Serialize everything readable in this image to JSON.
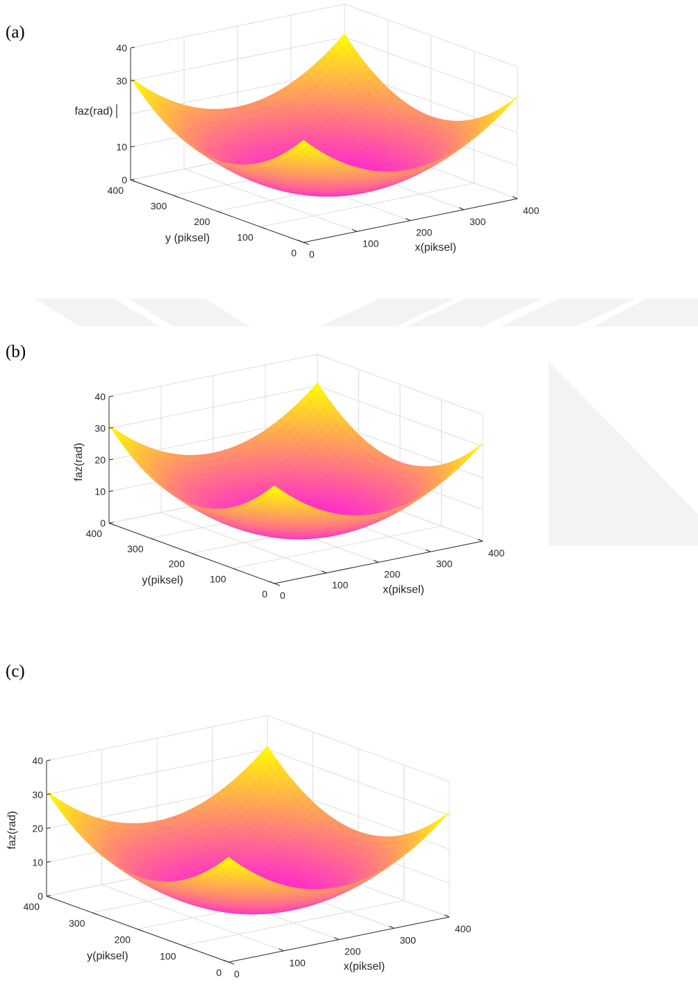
{
  "colors": {
    "surface_low": "#ff10e6",
    "surface_high": "#ffff00",
    "grid": "#dddddd",
    "axis": "#262626",
    "watermark": "#f3f3f3"
  },
  "chart_data": [
    {
      "panel_label": "(a)",
      "type": "surface",
      "xlabel": "x(piksel)",
      "ylabel": "y (piksel)",
      "zlabel": "faz(rad)",
      "zlabel_orientation": "horizontal",
      "xlim": [
        0,
        400
      ],
      "ylim": [
        0,
        400
      ],
      "zlim": [
        0,
        40
      ],
      "x_ticks": [
        "0",
        "100",
        "200",
        "300",
        "400"
      ],
      "y_ticks": [
        "0",
        "100",
        "200",
        "300",
        "400"
      ],
      "z_ticks": [
        "0",
        "10",
        "30",
        "40"
      ],
      "surface": {
        "center": [
          200,
          200
        ],
        "corner_values": {
          "x0_y0": 30,
          "x400_y0": 31,
          "x0_y400": 31,
          "x400_y400": 31
        },
        "min_value": 0,
        "colormap": "spring"
      },
      "grid": true
    },
    {
      "panel_label": "(b)",
      "type": "surface",
      "xlabel": "x(piksel)",
      "ylabel": "y(piksel)",
      "zlabel": "faz(rad)",
      "zlabel_orientation": "vertical",
      "xlim": [
        0,
        400
      ],
      "ylim": [
        0,
        400
      ],
      "zlim": [
        0,
        40
      ],
      "x_ticks": [
        "0",
        "100",
        "200",
        "300",
        "400"
      ],
      "y_ticks": [
        "0",
        "100",
        "200",
        "300",
        "400"
      ],
      "z_ticks": [
        "0",
        "10",
        "20",
        "30",
        "40"
      ],
      "surface": {
        "center": [
          200,
          200
        ],
        "corner_values": {
          "x0_y0": 30,
          "x400_y0": 31,
          "x0_y400": 31,
          "x400_y400": 31
        },
        "min_value": 0,
        "colormap": "spring"
      },
      "grid": true
    },
    {
      "panel_label": "(c)",
      "type": "surface",
      "xlabel": "x(piksel)",
      "ylabel": "y(piksel)",
      "zlabel": "faz(rad)",
      "zlabel_orientation": "vertical",
      "xlim": [
        0,
        400
      ],
      "ylim": [
        0,
        400
      ],
      "zlim": [
        0,
        40
      ],
      "x_ticks": [
        "0",
        "100",
        "200",
        "300",
        "400"
      ],
      "y_ticks": [
        "0",
        "100",
        "200",
        "300",
        "400"
      ],
      "z_ticks": [
        "0",
        "10",
        "20",
        "30",
        "40"
      ],
      "surface": {
        "center": [
          200,
          200
        ],
        "corner_values": {
          "x0_y0": 30,
          "x400_y0": 31,
          "x0_y400": 31,
          "x400_y400": 31
        },
        "min_value": 0,
        "colormap": "spring"
      },
      "grid": true
    }
  ]
}
